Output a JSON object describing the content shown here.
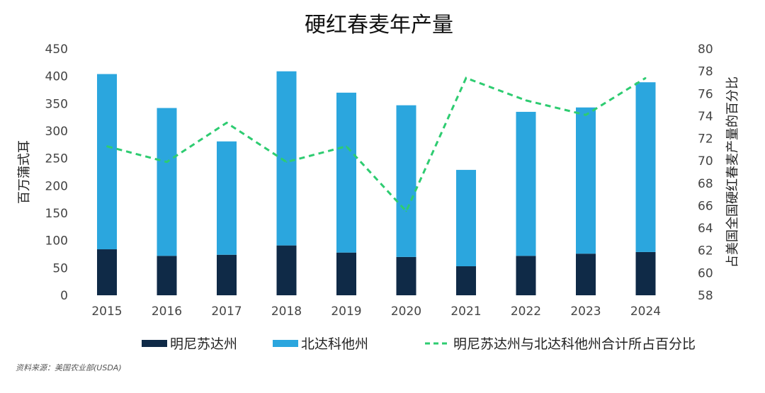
{
  "chart_data": {
    "type": "bar",
    "title": "硬红春麦年产量",
    "ylabel": "百万蒲式耳",
    "y2label": "占美国全国硬红春麦产量的百分比",
    "ylim": [
      0,
      450
    ],
    "y2lim": [
      58,
      80
    ],
    "yticks": [
      0,
      50,
      100,
      150,
      200,
      250,
      300,
      350,
      400,
      450
    ],
    "y2ticks": [
      58,
      60,
      62,
      64,
      66,
      68,
      70,
      72,
      74,
      76,
      78,
      80
    ],
    "categories": [
      "2015",
      "2016",
      "2017",
      "2018",
      "2019",
      "2020",
      "2021",
      "2022",
      "2023",
      "2024"
    ],
    "stacked": true,
    "series": [
      {
        "name": "明尼苏达州",
        "type": "bar",
        "color": "#0f2a47",
        "values": [
          84,
          72,
          74,
          91,
          78,
          70,
          53,
          72,
          76,
          79
        ]
      },
      {
        "name": "北达科他州",
        "type": "bar",
        "color": "#2ba6de",
        "values": [
          320,
          270,
          207,
          318,
          292,
          277,
          176,
          263,
          267,
          310
        ]
      },
      {
        "name": "明尼苏达州与北达科他州合计所占百分比",
        "type": "line",
        "axis": "right",
        "dashed": true,
        "color": "#2ecc71",
        "values": [
          71.3,
          69.9,
          73.4,
          69.9,
          71.3,
          65.5,
          77.4,
          75.4,
          74.1,
          77.4
        ]
      }
    ],
    "legend": "bottom",
    "grid": false
  },
  "source": "资料来源：美国农业部(USDA)"
}
